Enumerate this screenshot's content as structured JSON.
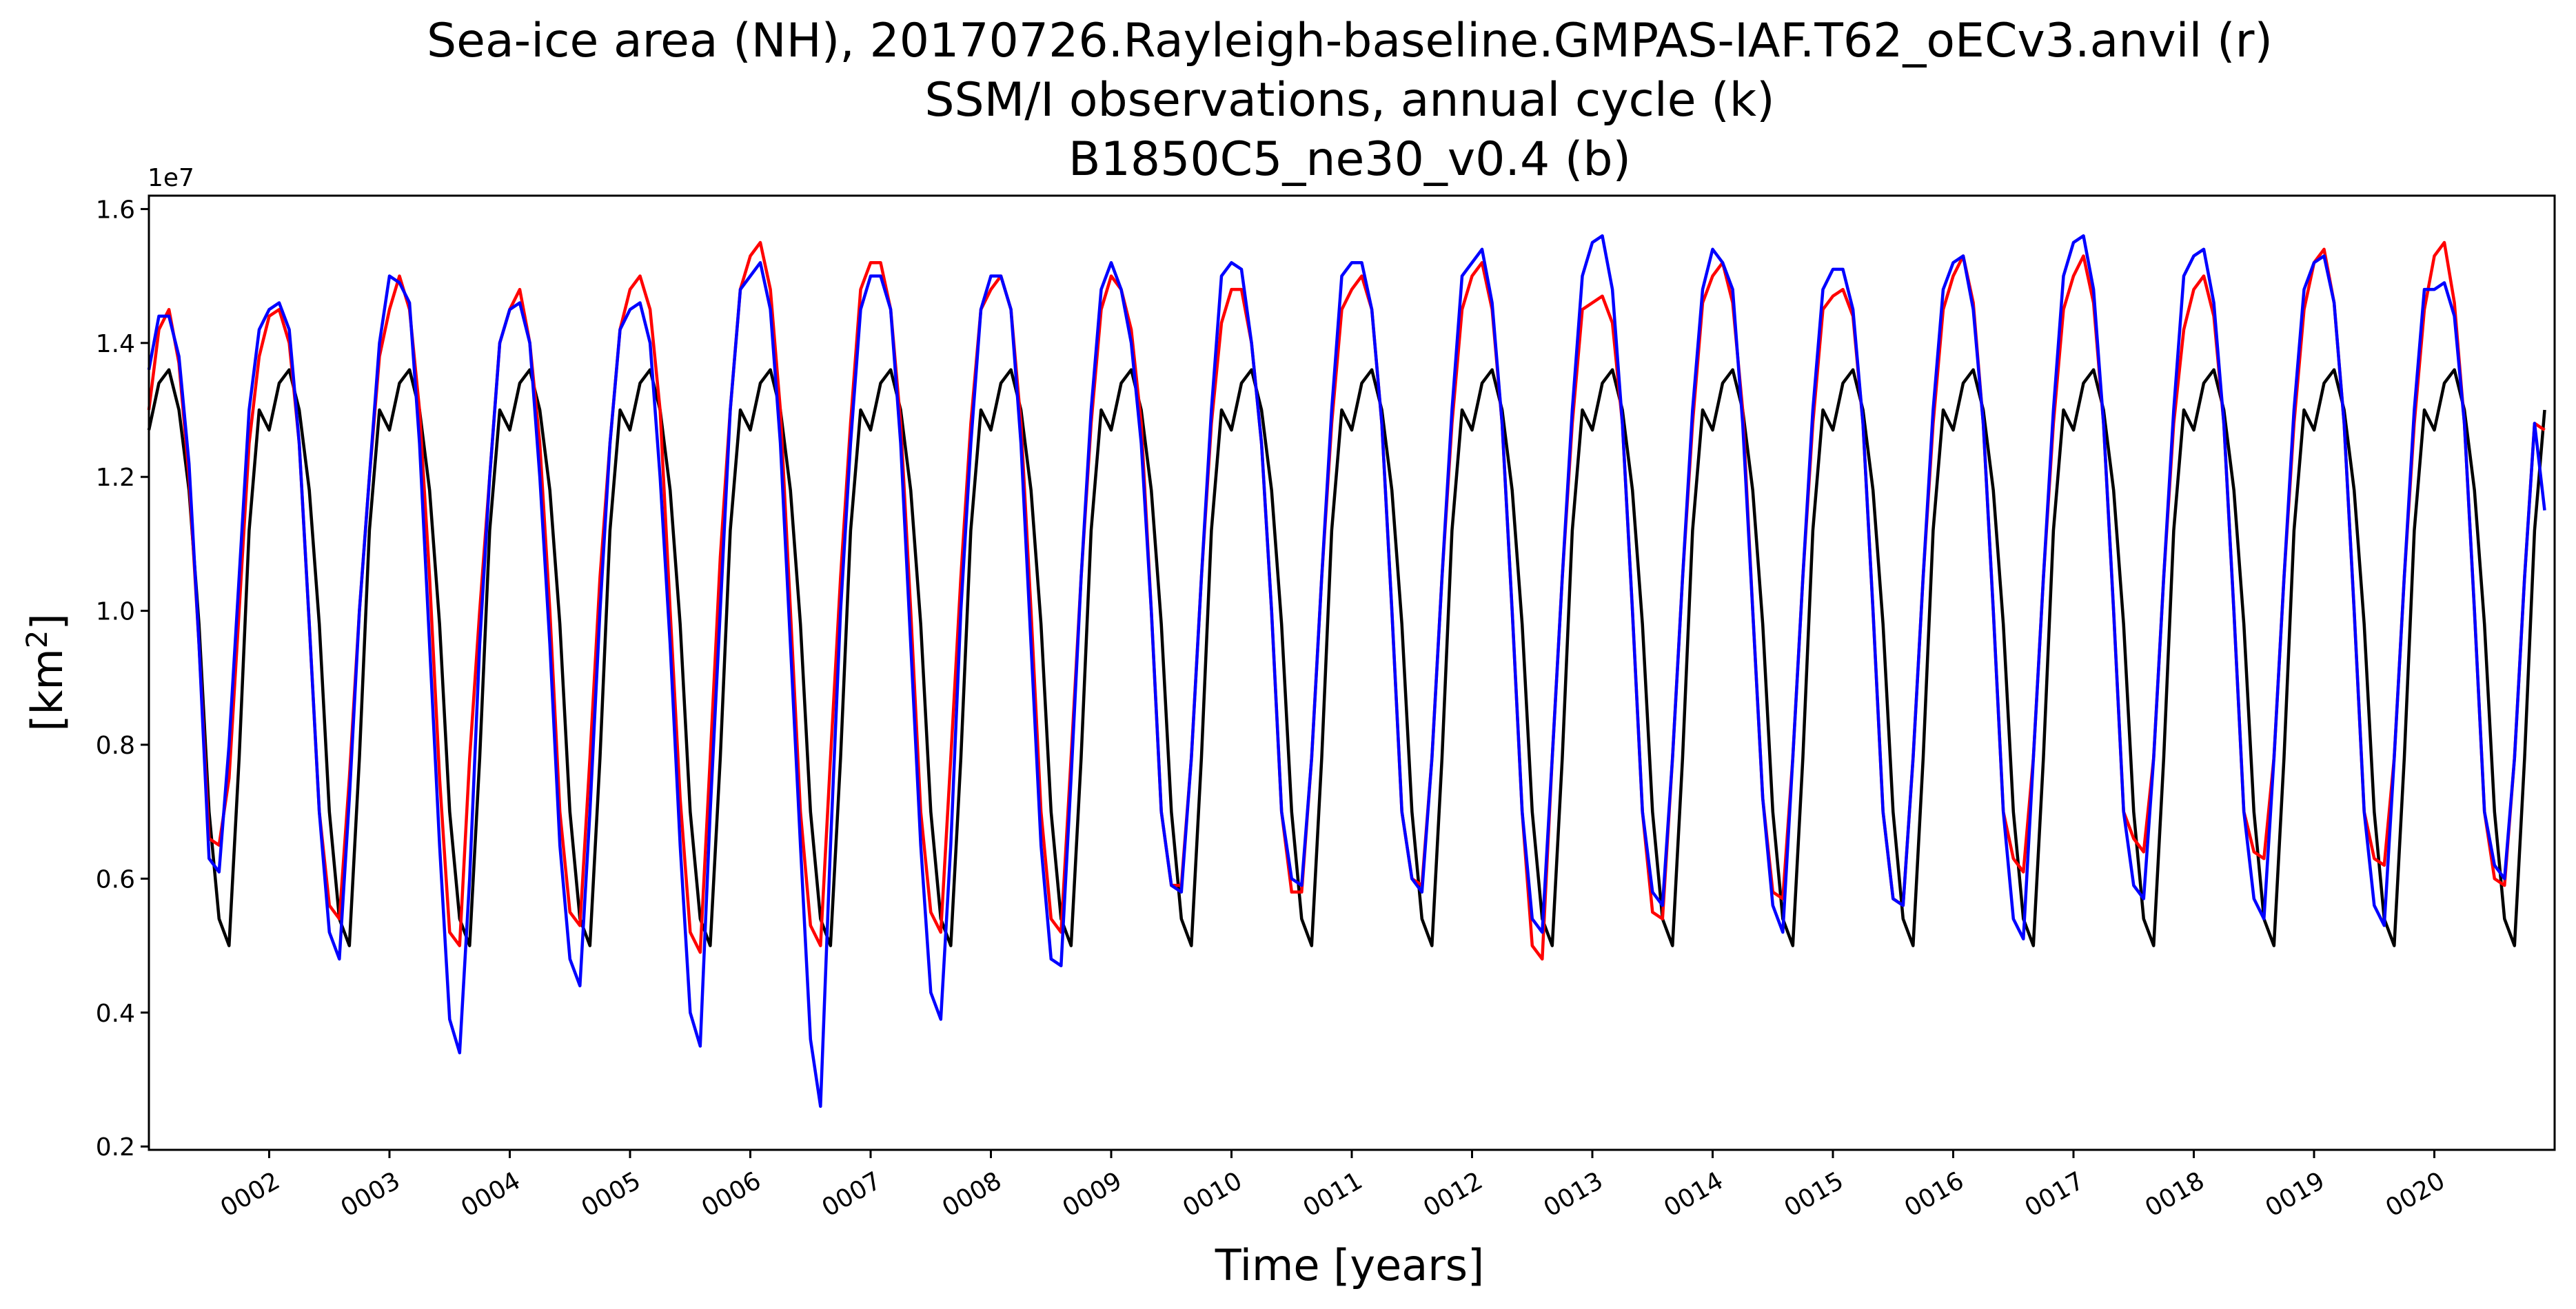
{
  "chart_data": {
    "type": "line",
    "title_lines": [
      "Sea-ice area (NH), 20170726.Rayleigh-baseline.GMPAS-IAF.T62_oECv3.anvil (r)",
      "SSM/I observations, annual cycle (k)",
      "B1850C5_ne30_v0.4 (b)"
    ],
    "xlabel": "Time [years]",
    "ylabel_prefix": "[km",
    "ylabel_sup": "2",
    "ylabel_suffix": "]",
    "y_offset_label": "1e7",
    "y_scale": 10000000,
    "xlim": [
      1.0,
      21.0
    ],
    "ylim": [
      0.195,
      1.62
    ],
    "x_ticks": [
      2,
      3,
      4,
      5,
      6,
      7,
      8,
      9,
      10,
      11,
      12,
      13,
      14,
      15,
      16,
      17,
      18,
      19,
      20
    ],
    "x_tick_labels": [
      "0002",
      "0003",
      "0004",
      "0005",
      "0006",
      "0007",
      "0008",
      "0009",
      "0010",
      "0011",
      "0012",
      "0013",
      "0014",
      "0015",
      "0016",
      "0017",
      "0018",
      "0019",
      "0020"
    ],
    "y_ticks": [
      0.2,
      0.4,
      0.6,
      0.8,
      1.0,
      1.2,
      1.4,
      1.6
    ],
    "y_tick_labels": [
      "0.2",
      "0.4",
      "0.6",
      "0.8",
      "1.0",
      "1.2",
      "1.4",
      "1.6"
    ],
    "grid": false,
    "legend": "none",
    "months_per_year": 12,
    "first_year": 1,
    "series": [
      {
        "color": "#000000",
        "values_by_year": [
          [
            1.27,
            1.34,
            1.36,
            1.3,
            1.18,
            0.98,
            0.7,
            0.54,
            0.5,
            0.78,
            1.12,
            1.3
          ]
        ],
        "repeat_all_years": true
      },
      {
        "color": "#ff0000",
        "values_by_year": [
          [
            1.3,
            1.42,
            1.45,
            1.37,
            1.2,
            0.95,
            0.66,
            0.65,
            0.75,
            1.0,
            1.25,
            1.38
          ],
          [
            1.44,
            1.45,
            1.4,
            1.25,
            0.98,
            0.7,
            0.56,
            0.54,
            0.75,
            1.0,
            1.2,
            1.38
          ],
          [
            1.45,
            1.5,
            1.45,
            1.3,
            1.05,
            0.75,
            0.52,
            0.5,
            0.78,
            1.0,
            1.2,
            1.4
          ],
          [
            1.45,
            1.48,
            1.4,
            1.25,
            1.0,
            0.7,
            0.55,
            0.53,
            0.78,
            1.05,
            1.25,
            1.42
          ],
          [
            1.48,
            1.5,
            1.45,
            1.3,
            1.0,
            0.72,
            0.52,
            0.49,
            0.78,
            1.08,
            1.3,
            1.48
          ],
          [
            1.53,
            1.55,
            1.48,
            1.3,
            1.0,
            0.7,
            0.53,
            0.5,
            0.78,
            1.05,
            1.28,
            1.48
          ],
          [
            1.52,
            1.52,
            1.45,
            1.28,
            1.0,
            0.7,
            0.55,
            0.52,
            0.78,
            1.05,
            1.28,
            1.45
          ],
          [
            1.48,
            1.5,
            1.45,
            1.28,
            1.0,
            0.7,
            0.54,
            0.52,
            0.78,
            1.05,
            1.28,
            1.45
          ],
          [
            1.5,
            1.48,
            1.42,
            1.28,
            1.0,
            0.7,
            0.59,
            0.59,
            0.78,
            1.05,
            1.28,
            1.43
          ],
          [
            1.48,
            1.48,
            1.4,
            1.25,
            1.0,
            0.7,
            0.58,
            0.58,
            0.78,
            1.05,
            1.28,
            1.45
          ],
          [
            1.48,
            1.5,
            1.45,
            1.28,
            1.0,
            0.7,
            0.6,
            0.59,
            0.78,
            1.05,
            1.28,
            1.45
          ],
          [
            1.5,
            1.52,
            1.45,
            1.28,
            1.0,
            0.7,
            0.5,
            0.48,
            0.78,
            1.05,
            1.28,
            1.45
          ],
          [
            1.46,
            1.47,
            1.43,
            1.28,
            1.0,
            0.7,
            0.55,
            0.54,
            0.78,
            1.05,
            1.28,
            1.46
          ],
          [
            1.5,
            1.52,
            1.46,
            1.3,
            1.0,
            0.72,
            0.58,
            0.57,
            0.78,
            1.05,
            1.28,
            1.45
          ],
          [
            1.47,
            1.48,
            1.44,
            1.28,
            1.0,
            0.7,
            0.57,
            0.56,
            0.78,
            1.05,
            1.28,
            1.45
          ],
          [
            1.5,
            1.53,
            1.46,
            1.28,
            1.0,
            0.7,
            0.63,
            0.61,
            0.78,
            1.05,
            1.28,
            1.45
          ],
          [
            1.5,
            1.53,
            1.46,
            1.28,
            1.0,
            0.7,
            0.66,
            0.64,
            0.78,
            1.05,
            1.28,
            1.42
          ],
          [
            1.48,
            1.5,
            1.44,
            1.28,
            1.0,
            0.7,
            0.64,
            0.63,
            0.78,
            1.05,
            1.28,
            1.45
          ],
          [
            1.52,
            1.54,
            1.46,
            1.28,
            1.0,
            0.7,
            0.63,
            0.62,
            0.78,
            1.05,
            1.28,
            1.45
          ],
          [
            1.53,
            1.55,
            1.46,
            1.28,
            1.0,
            0.7,
            0.6,
            0.59,
            0.78,
            1.05,
            1.28,
            1.27
          ]
        ]
      },
      {
        "color": "#0000ff",
        "values_by_year": [
          [
            1.36,
            1.44,
            1.44,
            1.38,
            1.22,
            0.95,
            0.63,
            0.61,
            0.8,
            1.05,
            1.3,
            1.42
          ],
          [
            1.45,
            1.46,
            1.42,
            1.25,
            0.98,
            0.7,
            0.52,
            0.48,
            0.72,
            1.0,
            1.2,
            1.4
          ],
          [
            1.5,
            1.49,
            1.46,
            1.25,
            0.95,
            0.65,
            0.39,
            0.34,
            0.6,
            0.95,
            1.2,
            1.4
          ],
          [
            1.45,
            1.46,
            1.4,
            1.2,
            0.95,
            0.65,
            0.48,
            0.44,
            0.7,
            1.0,
            1.25,
            1.42
          ],
          [
            1.45,
            1.46,
            1.4,
            1.2,
            0.95,
            0.65,
            0.4,
            0.35,
            0.7,
            1.0,
            1.3,
            1.48
          ],
          [
            1.5,
            1.52,
            1.45,
            1.25,
            0.95,
            0.65,
            0.36,
            0.26,
            0.65,
            1.0,
            1.25,
            1.45
          ],
          [
            1.5,
            1.5,
            1.45,
            1.25,
            0.95,
            0.65,
            0.43,
            0.39,
            0.65,
            1.0,
            1.25,
            1.45
          ],
          [
            1.5,
            1.5,
            1.45,
            1.25,
            0.95,
            0.65,
            0.48,
            0.47,
            0.75,
            1.05,
            1.3,
            1.48
          ],
          [
            1.52,
            1.48,
            1.4,
            1.25,
            1.0,
            0.7,
            0.59,
            0.58,
            0.78,
            1.05,
            1.3,
            1.5
          ],
          [
            1.52,
            1.51,
            1.4,
            1.25,
            1.0,
            0.7,
            0.6,
            0.59,
            0.78,
            1.05,
            1.3,
            1.5
          ],
          [
            1.52,
            1.52,
            1.45,
            1.28,
            1.0,
            0.7,
            0.6,
            0.58,
            0.78,
            1.05,
            1.3,
            1.5
          ],
          [
            1.52,
            1.54,
            1.46,
            1.28,
            1.0,
            0.7,
            0.54,
            0.52,
            0.78,
            1.05,
            1.3,
            1.5
          ],
          [
            1.55,
            1.56,
            1.48,
            1.28,
            1.0,
            0.7,
            0.58,
            0.56,
            0.78,
            1.05,
            1.3,
            1.48
          ],
          [
            1.54,
            1.52,
            1.48,
            1.28,
            1.0,
            0.72,
            0.56,
            0.52,
            0.78,
            1.05,
            1.3,
            1.48
          ],
          [
            1.51,
            1.51,
            1.45,
            1.28,
            1.0,
            0.7,
            0.57,
            0.56,
            0.78,
            1.05,
            1.3,
            1.48
          ],
          [
            1.52,
            1.53,
            1.45,
            1.28,
            1.0,
            0.7,
            0.54,
            0.51,
            0.78,
            1.05,
            1.3,
            1.5
          ],
          [
            1.55,
            1.56,
            1.48,
            1.28,
            1.0,
            0.7,
            0.59,
            0.57,
            0.78,
            1.05,
            1.3,
            1.5
          ],
          [
            1.53,
            1.54,
            1.46,
            1.28,
            1.0,
            0.7,
            0.57,
            0.54,
            0.78,
            1.05,
            1.3,
            1.48
          ],
          [
            1.52,
            1.53,
            1.46,
            1.28,
            1.0,
            0.7,
            0.56,
            0.53,
            0.78,
            1.05,
            1.3,
            1.48
          ],
          [
            1.48,
            1.49,
            1.44,
            1.28,
            1.0,
            0.7,
            0.62,
            0.6,
            0.78,
            1.05,
            1.28,
            1.15
          ]
        ]
      }
    ]
  }
}
